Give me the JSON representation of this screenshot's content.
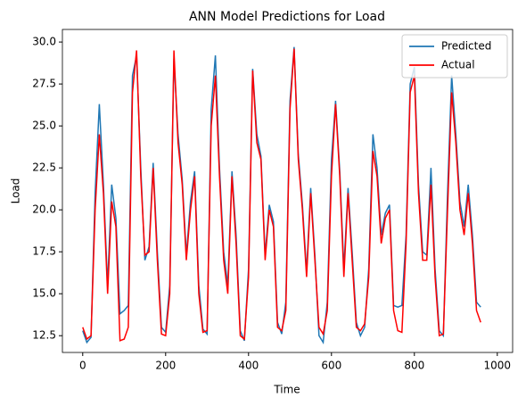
{
  "chart_data": {
    "type": "line",
    "title": "ANN Model Predictions for Load",
    "xlabel": "Time",
    "ylabel": "Load",
    "x": [
      0,
      10,
      20,
      30,
      40,
      50,
      60,
      70,
      80,
      90,
      100,
      110,
      120,
      130,
      140,
      150,
      160,
      170,
      180,
      190,
      200,
      210,
      220,
      230,
      240,
      250,
      260,
      270,
      280,
      290,
      300,
      310,
      320,
      330,
      340,
      350,
      360,
      370,
      380,
      390,
      400,
      410,
      420,
      430,
      440,
      450,
      460,
      470,
      480,
      490,
      500,
      510,
      520,
      530,
      540,
      550,
      560,
      570,
      580,
      590,
      600,
      610,
      620,
      630,
      640,
      650,
      660,
      670,
      680,
      690,
      700,
      710,
      720,
      730,
      740,
      750,
      760,
      770,
      780,
      790,
      800,
      810,
      820,
      830,
      840,
      850,
      860,
      870,
      880,
      890,
      900,
      910,
      920,
      930,
      940,
      950,
      960
    ],
    "series": [
      {
        "name": "Predicted",
        "color": "#1f77b4",
        "values": [
          12.8,
          12.1,
          12.4,
          21,
          26.3,
          21.5,
          15.5,
          21.5,
          19.5,
          13.8,
          14,
          14.3,
          28,
          29.2,
          22.5,
          17,
          17.8,
          22.8,
          17.5,
          13,
          12.7,
          15.5,
          29,
          24.5,
          21.8,
          17.3,
          20.5,
          22.3,
          15.5,
          12.9,
          12.6,
          26,
          29.2,
          22.5,
          17.5,
          15.5,
          22.3,
          18.5,
          12.8,
          12.2,
          16.5,
          28.4,
          24.5,
          23.2,
          17.3,
          20.3,
          19.3,
          13.3,
          12.6,
          14.5,
          26.5,
          29.7,
          23.3,
          20.3,
          16.3,
          21.3,
          17.3,
          12.5,
          12.1,
          14.5,
          23,
          26.5,
          22.3,
          16.5,
          21.3,
          17.5,
          13.3,
          12.5,
          13,
          16.5,
          24.5,
          22.5,
          18.5,
          19.8,
          20.3,
          14.3,
          14.2,
          14.3,
          18.5,
          27.5,
          28.5,
          21.5,
          17.5,
          17.3,
          22.5,
          16.5,
          12.8,
          12.5,
          21,
          28,
          24.5,
          20.5,
          19,
          21.5,
          18.5,
          14.5,
          14.2
        ]
      },
      {
        "name": "Actual",
        "color": "#ff0000",
        "values": [
          13.0,
          12.3,
          12.5,
          20,
          24.5,
          21,
          15,
          20.5,
          19,
          12.2,
          12.3,
          13,
          27,
          29.5,
          22,
          17.3,
          17.5,
          22.5,
          17,
          12.6,
          12.5,
          15,
          29.5,
          24,
          21.5,
          17,
          20,
          22,
          15,
          12.7,
          12.8,
          25,
          28,
          22,
          17,
          15,
          22,
          18,
          12.5,
          12.3,
          16,
          28.3,
          24,
          23,
          17,
          20,
          19,
          13,
          12.8,
          14,
          26,
          29.6,
          23,
          20,
          16,
          21,
          17,
          13,
          12.6,
          14,
          22,
          26.3,
          22,
          16,
          21,
          17,
          13,
          12.8,
          13.2,
          16,
          23.5,
          22,
          18,
          19.5,
          20,
          14,
          12.8,
          12.7,
          18,
          27,
          28,
          21,
          17,
          17,
          21.5,
          16,
          12.5,
          12.6,
          20,
          27,
          24,
          20,
          18.5,
          21,
          18,
          14,
          13.3
        ]
      }
    ],
    "xlim": [
      -49,
      1037
    ],
    "ylim": [
      11.5,
      30.75
    ],
    "xticks": [
      0,
      200,
      400,
      600,
      800,
      1000
    ],
    "yticks": [
      12.5,
      {
        "value": 15,
        "label": "15.0"
      },
      17.5,
      {
        "value": 20,
        "label": "20.0"
      },
      22.5,
      {
        "value": 25,
        "label": "25.0"
      },
      27.5,
      {
        "value": 30,
        "label": "30.0"
      }
    ],
    "legend": "upper right"
  }
}
